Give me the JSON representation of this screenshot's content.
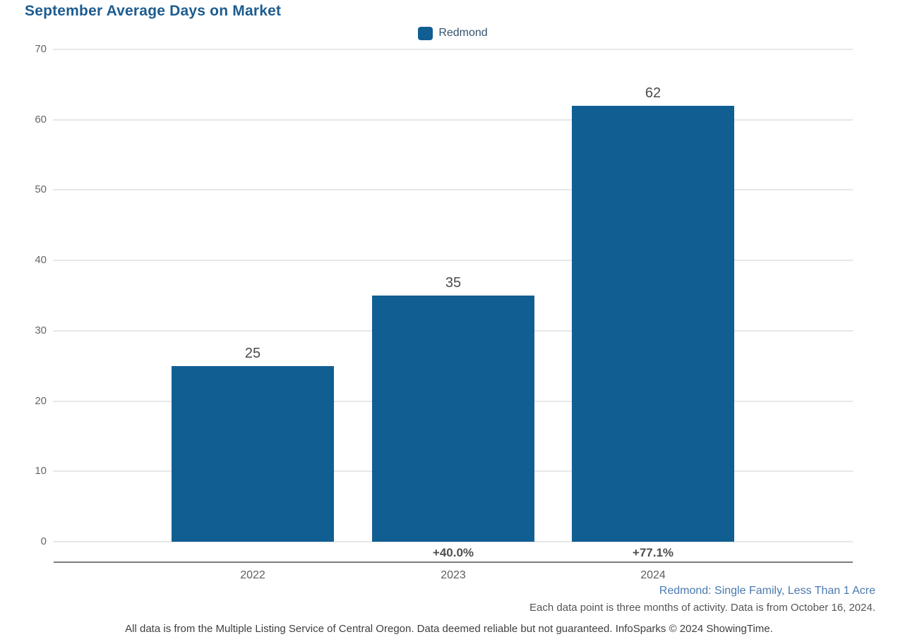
{
  "title": "September Average Days on Market",
  "legend": {
    "label": "Redmond",
    "swatch_color": "#115e93"
  },
  "chart_data": {
    "type": "bar",
    "title": "September Average Days on Market",
    "series_name": "Redmond",
    "categories": [
      "2022",
      "2023",
      "2024"
    ],
    "values": [
      25,
      35,
      62
    ],
    "bar_value_labels": [
      "25",
      "35",
      "62"
    ],
    "pct_change_labels": [
      "",
      "+40.0%",
      "+77.1%"
    ],
    "xlabel": "",
    "ylabel": "",
    "ylim": [
      0,
      70
    ],
    "yticks": [
      0,
      10,
      20,
      30,
      40,
      50,
      60,
      70
    ],
    "grid": true,
    "legend_position": "top-center",
    "bar_color": "#115e93"
  },
  "footnotes": {
    "series_description": "Redmond: Single Family, Less Than 1 Acre",
    "data_note": "Each data point is three months of activity. Data is from October 16, 2024.",
    "disclaimer": "All data is from the Multiple Listing Service of Central Oregon. Data deemed reliable but not guaranteed. InfoSparks © 2024 ShowingTime."
  },
  "colors": {
    "bar_blue": "#115e93",
    "title_blue": "#1d5c8f",
    "footnote_blue": "#4a7aae",
    "gridline_gray": "#e7e7e7",
    "axis_gray": "#7d7d7d"
  }
}
